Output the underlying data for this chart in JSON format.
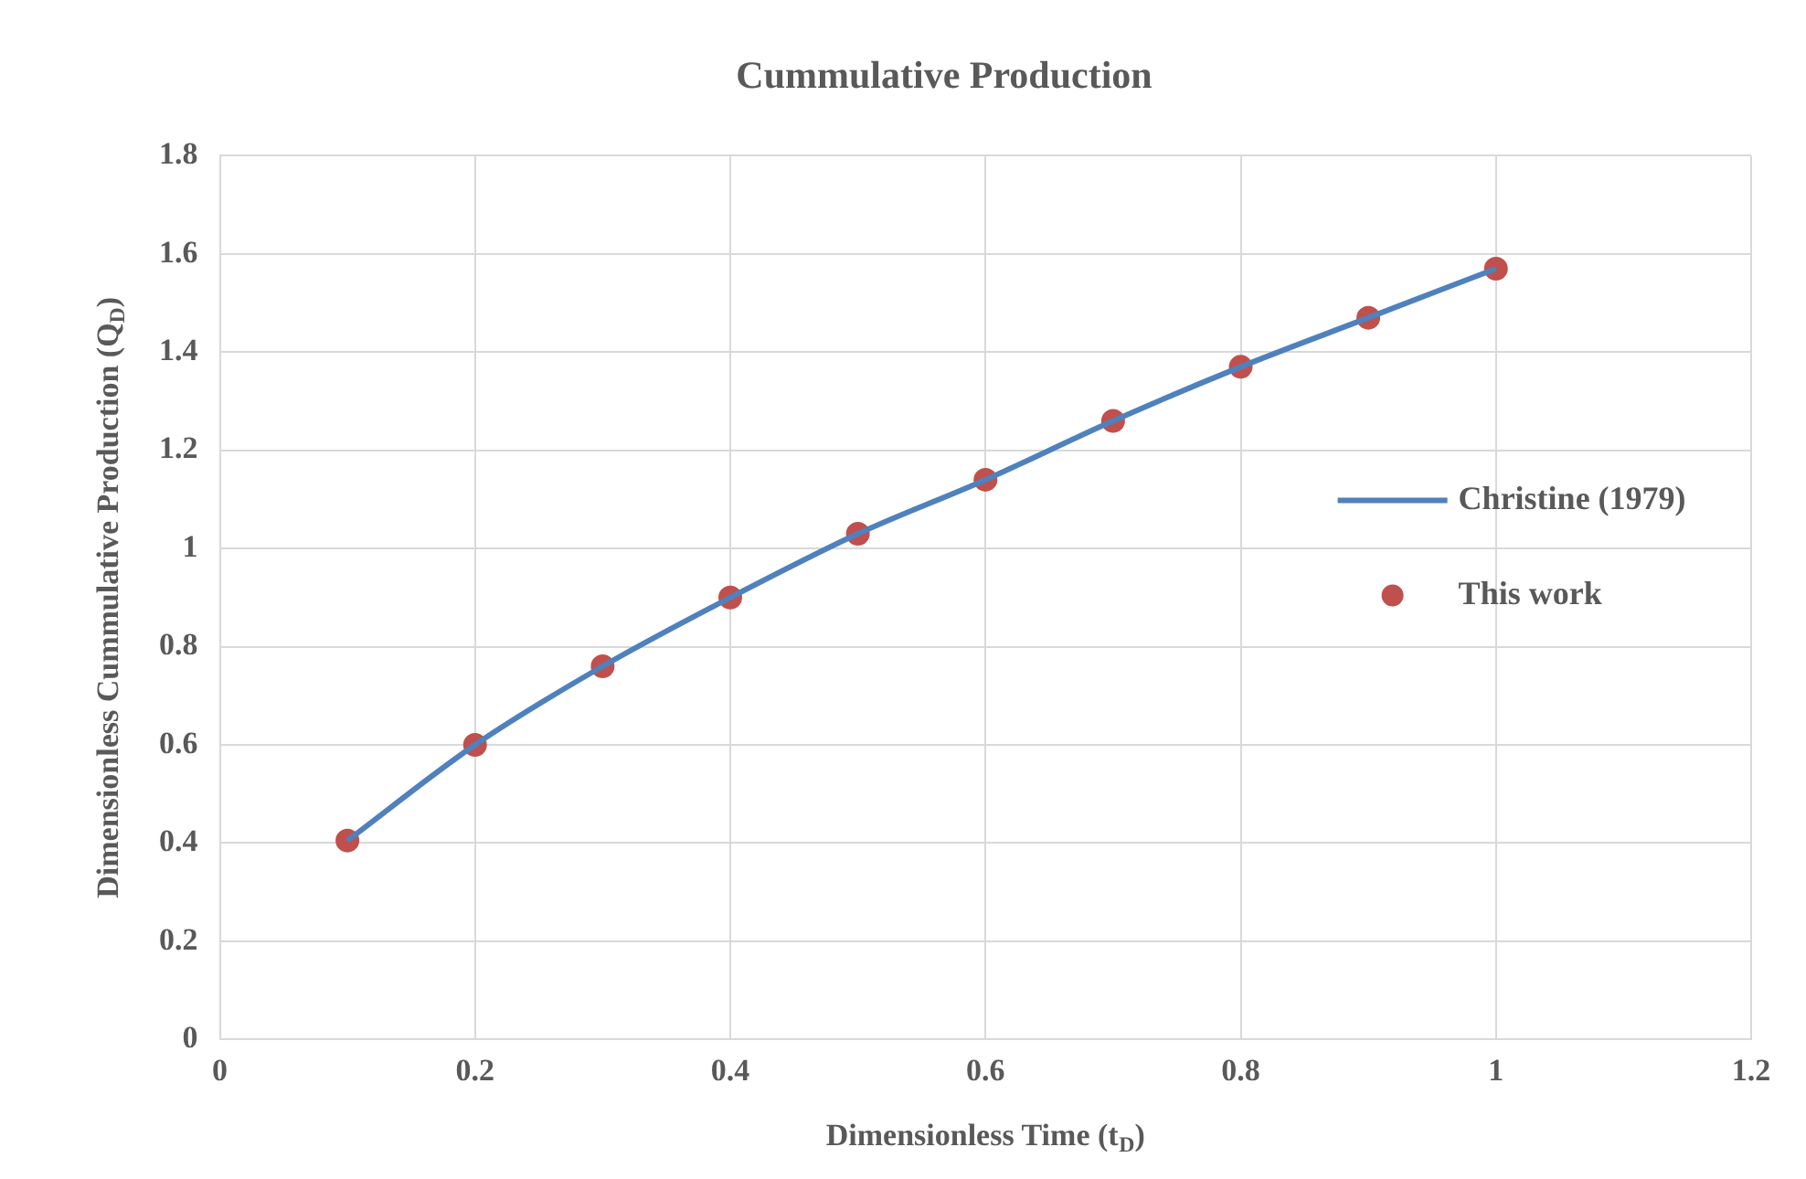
{
  "chart_data": {
    "type": "line",
    "title": "Cummulative Production",
    "xlabel": "Dimensionless Time (t$_{D}$)",
    "ylabel": "Dimensionless Cummulative Production (Q$_{D}$)",
    "x": [
      0.1,
      0.2,
      0.3,
      0.4,
      0.5,
      0.6,
      0.7,
      0.8,
      0.9,
      1.0
    ],
    "series": [
      {
        "name": "Christine (1979)",
        "color": "#4f81bd",
        "line_style": "solid",
        "marker": "none",
        "values": [
          0.405,
          0.6,
          0.76,
          0.9,
          1.03,
          1.14,
          1.26,
          1.37,
          1.47,
          1.57
        ]
      },
      {
        "name": "This work",
        "type": "scatter",
        "color": "#c0504d",
        "marker": "circle",
        "values": [
          0.405,
          0.6,
          0.76,
          0.9,
          1.03,
          1.14,
          1.26,
          1.37,
          1.47,
          1.57
        ]
      }
    ],
    "xlim": [
      0,
      1.2
    ],
    "xticks": [
      0,
      0.2,
      0.4,
      0.6,
      0.8,
      1,
      1.2
    ],
    "ylim": [
      0,
      1.8
    ],
    "yticks": [
      0,
      0.2,
      0.4,
      0.6,
      0.8,
      1,
      1.2,
      1.4,
      1.6,
      1.8
    ],
    "grid": true,
    "legend": "right"
  }
}
